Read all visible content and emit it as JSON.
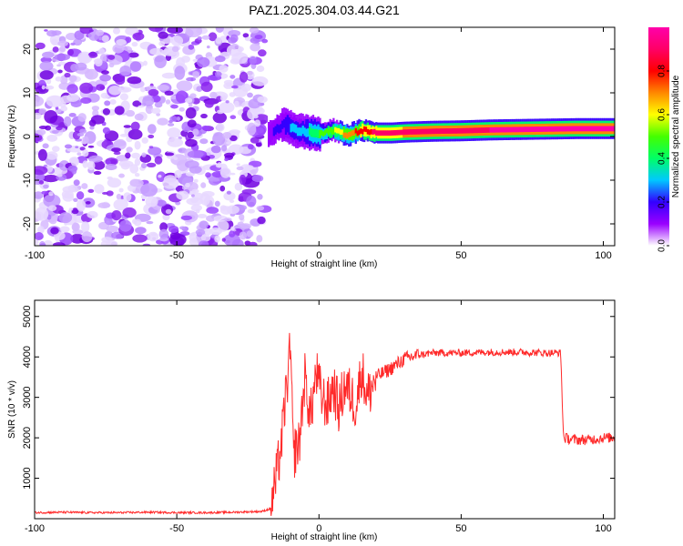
{
  "title": "PAZ1.2025.304.03.44.G21",
  "chart_data": [
    {
      "type": "heatmap",
      "name": "spectrogram",
      "xlabel": "Height of straight line (km)",
      "ylabel": "Frequency (Hz)",
      "xlim": [
        -100,
        104
      ],
      "ylim": [
        -25,
        25
      ],
      "xticks": [
        -100,
        -50,
        0,
        50,
        100
      ],
      "yticks": [
        -20,
        -10,
        0,
        10,
        20
      ],
      "noise_region_x": [
        -100,
        -19
      ],
      "signal_track": {
        "x": [
          -18,
          -15,
          -12,
          -8,
          -4,
          0,
          5,
          10,
          15,
          20,
          25,
          30,
          40,
          50,
          60,
          70,
          80,
          90,
          100,
          104
        ],
        "frequency": [
          0.5,
          1.8,
          2.8,
          1.3,
          1.0,
          0.5,
          1.5,
          0.3,
          1.5,
          0.8,
          0.8,
          1.0,
          1.2,
          1.3,
          1.5,
          1.6,
          1.7,
          1.8,
          1.8,
          1.8
        ],
        "amplitude": [
          0.12,
          0.18,
          0.22,
          0.3,
          0.35,
          0.45,
          0.55,
          0.7,
          0.8,
          0.88,
          0.92,
          0.93,
          0.93,
          0.94,
          0.95,
          0.95,
          0.96,
          0.95,
          0.95,
          0.95
        ]
      },
      "colorbar": {
        "label": "Normalized spectral amplitude",
        "range": [
          0,
          1
        ],
        "ticks": [
          "0.0",
          "0.2",
          "0.4",
          "0.6",
          "0.8"
        ],
        "colors": [
          "#ffffff",
          "#9a00ff",
          "#3300ff",
          "#00c8ff",
          "#00ff66",
          "#44ff00",
          "#ffff00",
          "#ff8800",
          "#ff0000",
          "#ff0066",
          "#ff00aa"
        ]
      }
    },
    {
      "type": "line",
      "name": "snr",
      "xlabel": "Height of straight line (km)",
      "ylabel": "SNR (10 * v/v)",
      "xlim": [
        -100,
        104
      ],
      "ylim": [
        0,
        5400
      ],
      "xticks": [
        -100,
        -50,
        0,
        50,
        100
      ],
      "yticks": [
        1000,
        2000,
        3000,
        4000,
        5000
      ],
      "color": "#ff2a2a",
      "series": [
        {
          "name": "SNR",
          "x": [
            -100,
            -90,
            -80,
            -70,
            -60,
            -50,
            -40,
            -30,
            -20,
            -17,
            -15,
            -13,
            -12,
            -11,
            -10,
            -9,
            -8,
            -7,
            -5,
            -3,
            -1,
            1,
            3,
            5,
            7,
            9,
            11,
            13,
            15,
            17,
            20,
            25,
            30,
            35,
            40,
            50,
            60,
            70,
            80,
            85,
            86,
            90,
            95,
            100,
            104
          ],
          "y": [
            150,
            160,
            150,
            150,
            160,
            150,
            150,
            160,
            180,
            250,
            1000,
            2000,
            2800,
            3500,
            4200,
            1500,
            1800,
            1800,
            3500,
            2500,
            3600,
            3000,
            2800,
            3300,
            2700,
            3300,
            3100,
            2800,
            3700,
            3000,
            3500,
            3700,
            3950,
            4050,
            4100,
            4100,
            4120,
            4120,
            4100,
            4100,
            2000,
            1950,
            1950,
            2000,
            2000
          ]
        }
      ]
    }
  ]
}
